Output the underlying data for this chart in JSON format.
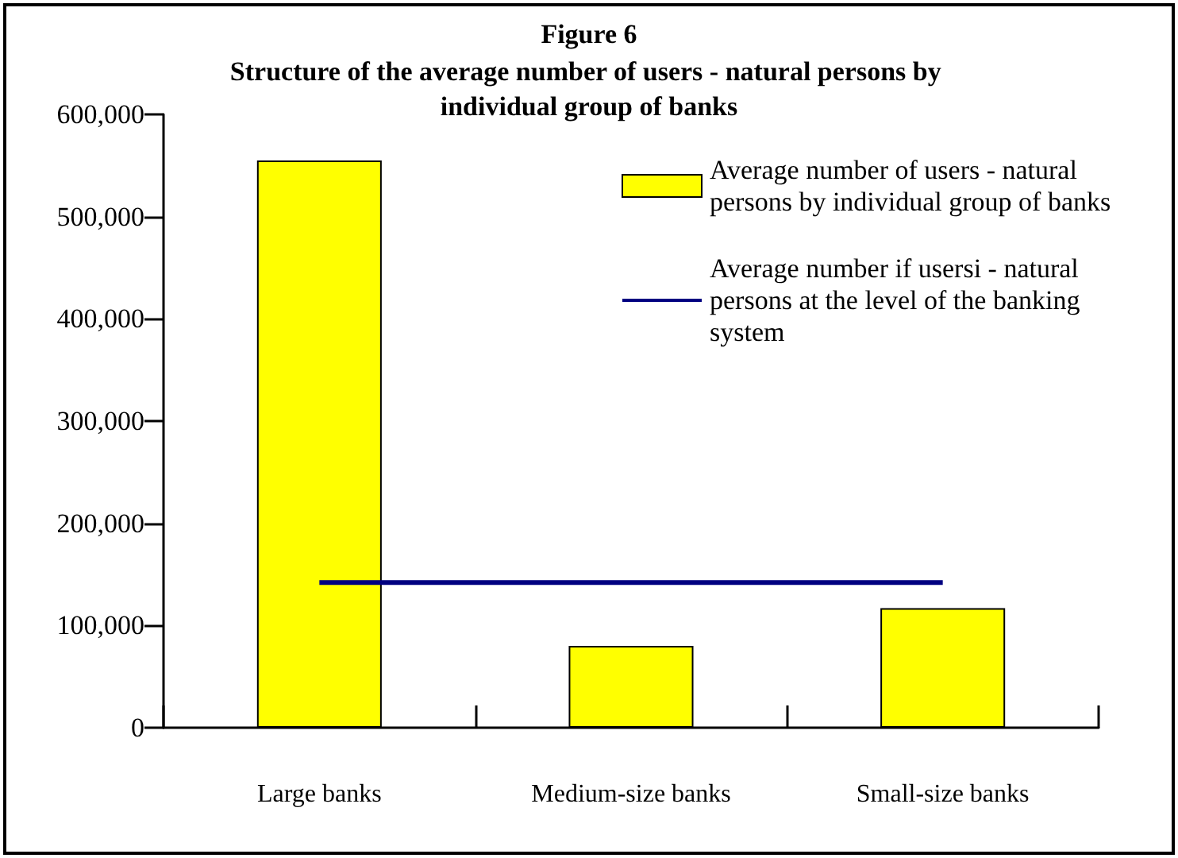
{
  "chart_data": {
    "type": "bar",
    "title": "Figure 6",
    "subtitle": "Structure of the average number of users - natural persons by individual group of banks",
    "categories": [
      "Large banks",
      "Medium-size banks",
      "Small-size banks"
    ],
    "series": [
      {
        "name": "Average number of users - natural persons by individual group of banks",
        "color": "#ffff00",
        "values": [
          555000,
          80000,
          117000
        ]
      },
      {
        "name": "Average number if usersi - natural persons at the level of the banking system",
        "type": "line",
        "color": "#000080",
        "values": [
          142000,
          142000,
          142000
        ]
      }
    ],
    "ylim": [
      0,
      600000
    ],
    "yticks": [
      0,
      {
        "value": 100000,
        "label": "100,000"
      },
      {
        "value": 200000,
        "label": "200,000"
      },
      {
        "value": 300000,
        "label": "300,000"
      },
      {
        "value": 400000,
        "label": "400,000"
      },
      {
        "value": 500000,
        "label": "500,000"
      },
      {
        "value": 600000,
        "label": "600,000"
      }
    ],
    "grid": false,
    "legend": "top right",
    "marker": "none"
  }
}
